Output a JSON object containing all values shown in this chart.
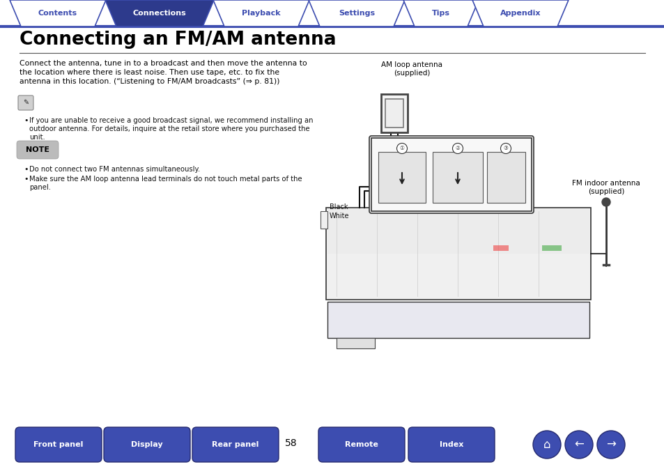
{
  "bg_color": "#ffffff",
  "tab_color_active": "#2d3a8c",
  "tab_color_inactive": "#ffffff",
  "tab_border_color": "#3d4db0",
  "tab_labels": [
    "Contents",
    "Connections",
    "Playback",
    "Settings",
    "Tips",
    "Appendix"
  ],
  "tab_active_index": 1,
  "title": "Connecting an FM/AM antenna",
  "title_color": "#000000",
  "divider_color": "#555555",
  "body_text_line1": "Connect the antenna, tune in to a broadcast and then move the antenna to",
  "body_text_line2": "the location where there is least noise. Then use tape, etc. to fix the",
  "body_text_line3": "antenna in this location. (“Listening to FM/AM broadcasts” (⇒ p. 81))",
  "note_label": "NOTE",
  "note_bg": "#bbbbbb",
  "bullet1_lines": [
    "If you are unable to receive a good broadcast signal, we recommend installing an",
    "outdoor antenna. For details, inquire at the retail store where you purchased the",
    "unit."
  ],
  "note_bullet1": "Do not connect two FM antennas simultaneously.",
  "note_bullet2a": "Make sure the AM loop antenna lead terminals do not touch metal parts of the",
  "note_bullet2b": "panel.",
  "am_label_line1": "AM loop antenna",
  "am_label_line2": "(supplied)",
  "fm_label_line1": "FM indoor antenna",
  "fm_label_line2": "(supplied)",
  "black_label": "Black",
  "white_label": "White",
  "page_number": "58",
  "bottom_buttons": [
    "Front panel",
    "Display",
    "Rear panel",
    "Remote",
    "Index"
  ],
  "bottom_btn_color": "#3d4db0",
  "bottom_btn_text_color": "#ffffff"
}
